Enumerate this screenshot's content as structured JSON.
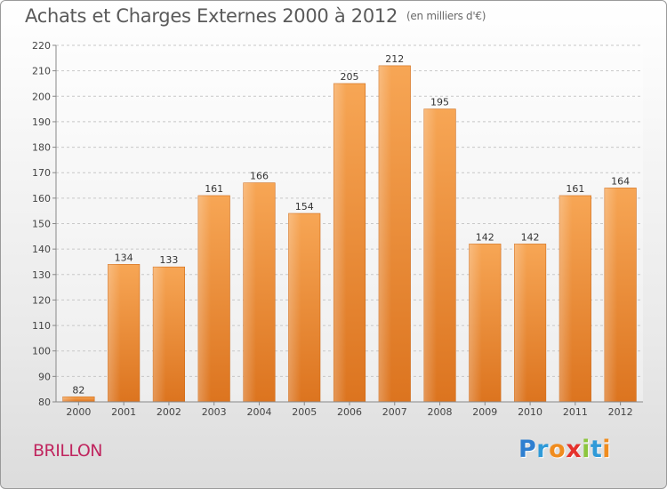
{
  "header": {
    "title": "Achats et Charges Externes 2000 à 2012",
    "subtitle": "(en milliers d'€)"
  },
  "location": "BRILLON",
  "logo": {
    "letters": [
      "P",
      "r",
      "o",
      "x",
      "i",
      "t",
      "i"
    ],
    "colors": [
      "#2f7fd0",
      "#2f9ad8",
      "#f08c1e",
      "#e5322d",
      "#8cc63e",
      "#2f9ad8",
      "#f08c1e"
    ]
  },
  "chart_data": {
    "type": "bar",
    "title": "Achats et Charges Externes 2000 à 2012",
    "subtitle": "(en milliers d'€)",
    "categories": [
      "2000",
      "2001",
      "2002",
      "2003",
      "2004",
      "2005",
      "2006",
      "2007",
      "2008",
      "2009",
      "2010",
      "2011",
      "2012"
    ],
    "values": [
      82,
      134,
      133,
      161,
      166,
      154,
      205,
      212,
      195,
      142,
      142,
      161,
      164
    ],
    "ylim": [
      80,
      220
    ],
    "yticks": [
      80,
      90,
      100,
      110,
      120,
      130,
      140,
      150,
      160,
      170,
      180,
      190,
      200,
      210,
      220
    ],
    "grid": true,
    "bar_color": "#f29a3e"
  }
}
